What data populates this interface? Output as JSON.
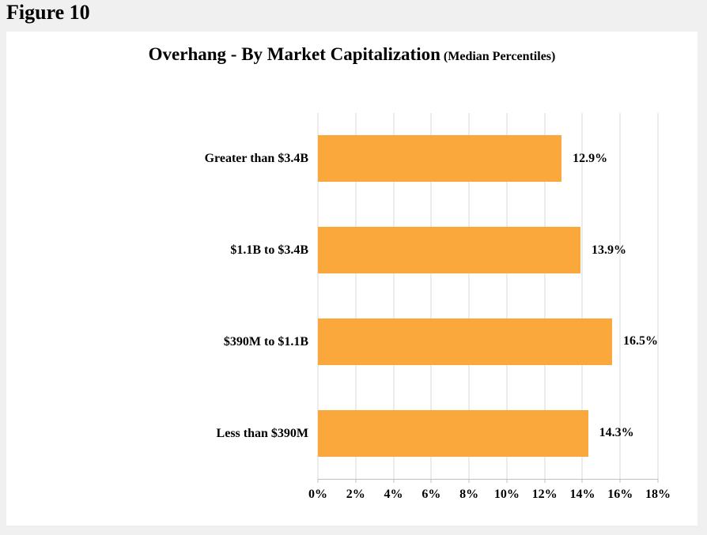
{
  "figure": {
    "label": "Figure 10"
  },
  "chart_data": {
    "type": "bar",
    "orientation": "horizontal",
    "title": "Overhang - By Market Capitalization",
    "subtitle": "(Median Percentiles)",
    "categories": [
      "Greater than $3.4B",
      "$1.1B to $3.4B",
      "$390M to $1.1B",
      "Less than $390M"
    ],
    "values": [
      12.9,
      13.9,
      16.5,
      14.3
    ],
    "value_labels": [
      "12.9%",
      "13.9%",
      "16.5%",
      "14.3%"
    ],
    "xlabel": "",
    "ylabel": "",
    "xlim": [
      0,
      18
    ],
    "x_tick_values": [
      0,
      2,
      4,
      6,
      8,
      10,
      12,
      14,
      16,
      18
    ],
    "x_tick_labels": [
      "0%",
      "2%",
      "4%",
      "6%",
      "8%",
      "10%",
      "12%",
      "14%",
      "16%",
      "18%"
    ],
    "grid": true,
    "legend": false,
    "bar_color": "#FAA83C",
    "gridline_color": "#d9d9d9",
    "axis_color": "#bfbfbf"
  }
}
